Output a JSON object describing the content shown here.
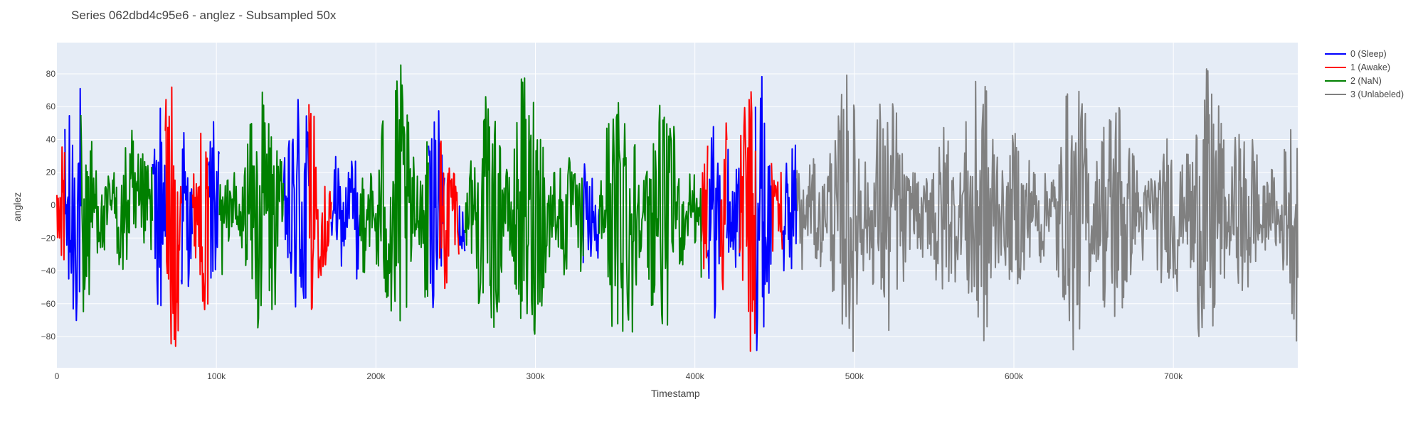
{
  "chart_data": {
    "type": "line",
    "title": "Series 062dbd4c95e6 - anglez - Subsampled 50x",
    "xlabel": "Timestamp",
    "ylabel": "anglez",
    "xlim": [
      0,
      778000
    ],
    "ylim": [
      -99,
      99
    ],
    "grid": true,
    "legend_position": "top-right",
    "x_ticks": [
      {
        "value": 0,
        "label": "0"
      },
      {
        "value": 100000,
        "label": "100k"
      },
      {
        "value": 200000,
        "label": "200k"
      },
      {
        "value": 300000,
        "label": "300k"
      },
      {
        "value": 400000,
        "label": "400k"
      },
      {
        "value": 500000,
        "label": "500k"
      },
      {
        "value": 600000,
        "label": "600k"
      },
      {
        "value": 700000,
        "label": "700k"
      }
    ],
    "y_ticks": [
      {
        "value": 80,
        "label": "80"
      },
      {
        "value": 60,
        "label": "60"
      },
      {
        "value": 40,
        "label": "40"
      },
      {
        "value": 20,
        "label": "20"
      },
      {
        "value": 0,
        "label": "0"
      },
      {
        "value": -20,
        "label": "−20"
      },
      {
        "value": -40,
        "label": "−40"
      },
      {
        "value": -60,
        "label": "−60"
      },
      {
        "value": -80,
        "label": "−80"
      }
    ],
    "series": [
      {
        "name": "0 (Sleep)",
        "color": "#0000ff",
        "segments": [
          [
            5000,
            15000
          ],
          [
            60000,
            68000
          ],
          [
            78000,
            85000
          ],
          [
            95000,
            102000
          ],
          [
            142000,
            158000
          ],
          [
            172000,
            190000
          ],
          [
            233000,
            243000
          ],
          [
            252000,
            256000
          ],
          [
            330000,
            340000
          ],
          [
            408000,
            416000
          ],
          [
            420000,
            428000
          ],
          [
            438000,
            448000
          ],
          [
            455000,
            464000
          ]
        ]
      },
      {
        "name": "1 (Awake)",
        "color": "#ff0000",
        "segments": [
          [
            0,
            5000
          ],
          [
            68000,
            78000
          ],
          [
            85000,
            95000
          ],
          [
            158000,
            172000
          ],
          [
            240000,
            252000
          ],
          [
            404000,
            408000
          ],
          [
            416000,
            420000
          ],
          [
            428000,
            438000
          ],
          [
            448000,
            455000
          ]
        ]
      },
      {
        "name": "2 (NaN)",
        "color": "#008000",
        "segments": [
          [
            15000,
            60000
          ],
          [
            102000,
            142000
          ],
          [
            190000,
            233000
          ],
          [
            256000,
            330000
          ],
          [
            340000,
            404000
          ]
        ]
      },
      {
        "name": "3 (Unlabeled)",
        "color": "#808080",
        "segments": [
          [
            464000,
            778000
          ]
        ]
      }
    ]
  }
}
